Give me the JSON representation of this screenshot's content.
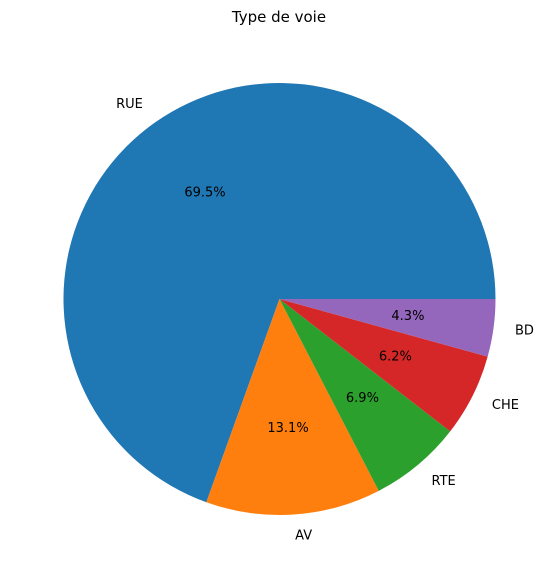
{
  "chart_data": {
    "type": "pie",
    "title": "Type de voie",
    "categories": [
      "RUE",
      "AV",
      "RTE",
      "CHE",
      "BD"
    ],
    "values": [
      69.5,
      13.1,
      6.9,
      6.2,
      4.3
    ],
    "percent_labels": [
      "69.5%",
      "13.1%",
      "6.9%",
      "6.2%",
      "4.3%"
    ],
    "colors": [
      "#1f77b4",
      "#ff7f0e",
      "#2ca02c",
      "#d62728",
      "#9467bd"
    ],
    "start_angle_deg": 0,
    "direction": "counterclockwise"
  }
}
